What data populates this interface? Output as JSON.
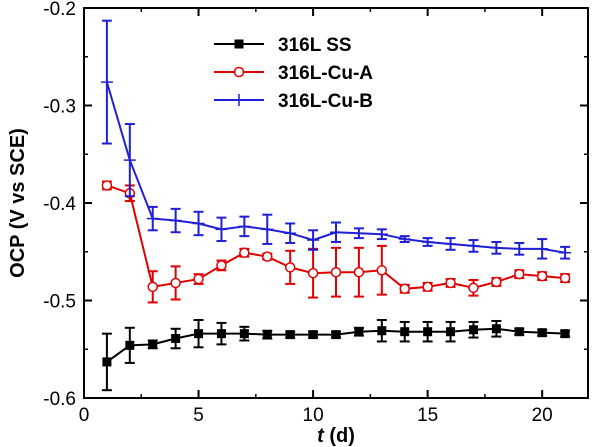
{
  "chart_data": {
    "type": "line",
    "xlabel_italic": "t",
    "xlabel_rest": " (d)",
    "ylabel": "OCP (V vs SCE)",
    "xlim": [
      0,
      22
    ],
    "ylim": [
      -0.6,
      -0.2
    ],
    "xticks": [
      0,
      5,
      10,
      15,
      20
    ],
    "yticks": [
      -0.6,
      -0.5,
      -0.4,
      -0.3,
      -0.2
    ],
    "ytick_labels": [
      "-0.6",
      "-0.5",
      "-0.4",
      "-0.3",
      "-0.2"
    ],
    "grid": false,
    "legend_position": "top-center",
    "x": [
      1,
      2,
      3,
      4,
      5,
      6,
      7,
      8,
      9,
      10,
      11,
      12,
      13,
      14,
      15,
      16,
      17,
      18,
      19,
      20,
      21
    ],
    "series": [
      {
        "name": "316L SS",
        "color": "#000000",
        "marker": "filled-square",
        "values": [
          -0.563,
          -0.546,
          -0.545,
          -0.539,
          -0.534,
          -0.534,
          -0.534,
          -0.535,
          -0.535,
          -0.535,
          -0.535,
          -0.532,
          -0.531,
          -0.532,
          -0.532,
          -0.532,
          -0.53,
          -0.529,
          -0.532,
          -0.533,
          -0.534
        ],
        "errors": [
          0.029,
          0.018,
          0.004,
          0.01,
          0.014,
          0.011,
          0.007,
          0.004,
          0.003,
          0.003,
          0.003,
          0.004,
          0.011,
          0.01,
          0.01,
          0.01,
          0.008,
          0.008,
          0.003,
          0.003,
          0.003
        ]
      },
      {
        "name": "316L-Cu-A",
        "color": "#e00000",
        "marker": "open-circle",
        "values": [
          -0.382,
          -0.39,
          -0.486,
          -0.482,
          -0.478,
          -0.464,
          -0.451,
          -0.455,
          -0.466,
          -0.472,
          -0.471,
          -0.471,
          -0.469,
          -0.488,
          -0.486,
          -0.482,
          -0.487,
          -0.481,
          -0.473,
          -0.475,
          -0.477
        ],
        "errors": [
          0.004,
          0.008,
          0.016,
          0.017,
          0.005,
          0.005,
          0.004,
          0.003,
          0.017,
          0.025,
          0.025,
          0.025,
          0.025,
          0.004,
          0.004,
          0.004,
          0.008,
          0.004,
          0.004,
          0.004,
          0.004
        ]
      },
      {
        "name": "316L-Cu-B",
        "color": "#1f1fd6",
        "marker": "plus",
        "values": [
          -0.276,
          -0.356,
          -0.416,
          -0.418,
          -0.421,
          -0.427,
          -0.424,
          -0.427,
          -0.431,
          -0.438,
          -0.43,
          -0.431,
          -0.432,
          -0.437,
          -0.44,
          -0.442,
          -0.444,
          -0.446,
          -0.447,
          -0.447,
          -0.451
        ],
        "errors": [
          0.063,
          0.037,
          0.012,
          0.012,
          0.012,
          0.012,
          0.01,
          0.015,
          0.01,
          0.01,
          0.01,
          0.005,
          0.005,
          0.003,
          0.004,
          0.006,
          0.006,
          0.006,
          0.006,
          0.01,
          0.006
        ]
      }
    ]
  }
}
